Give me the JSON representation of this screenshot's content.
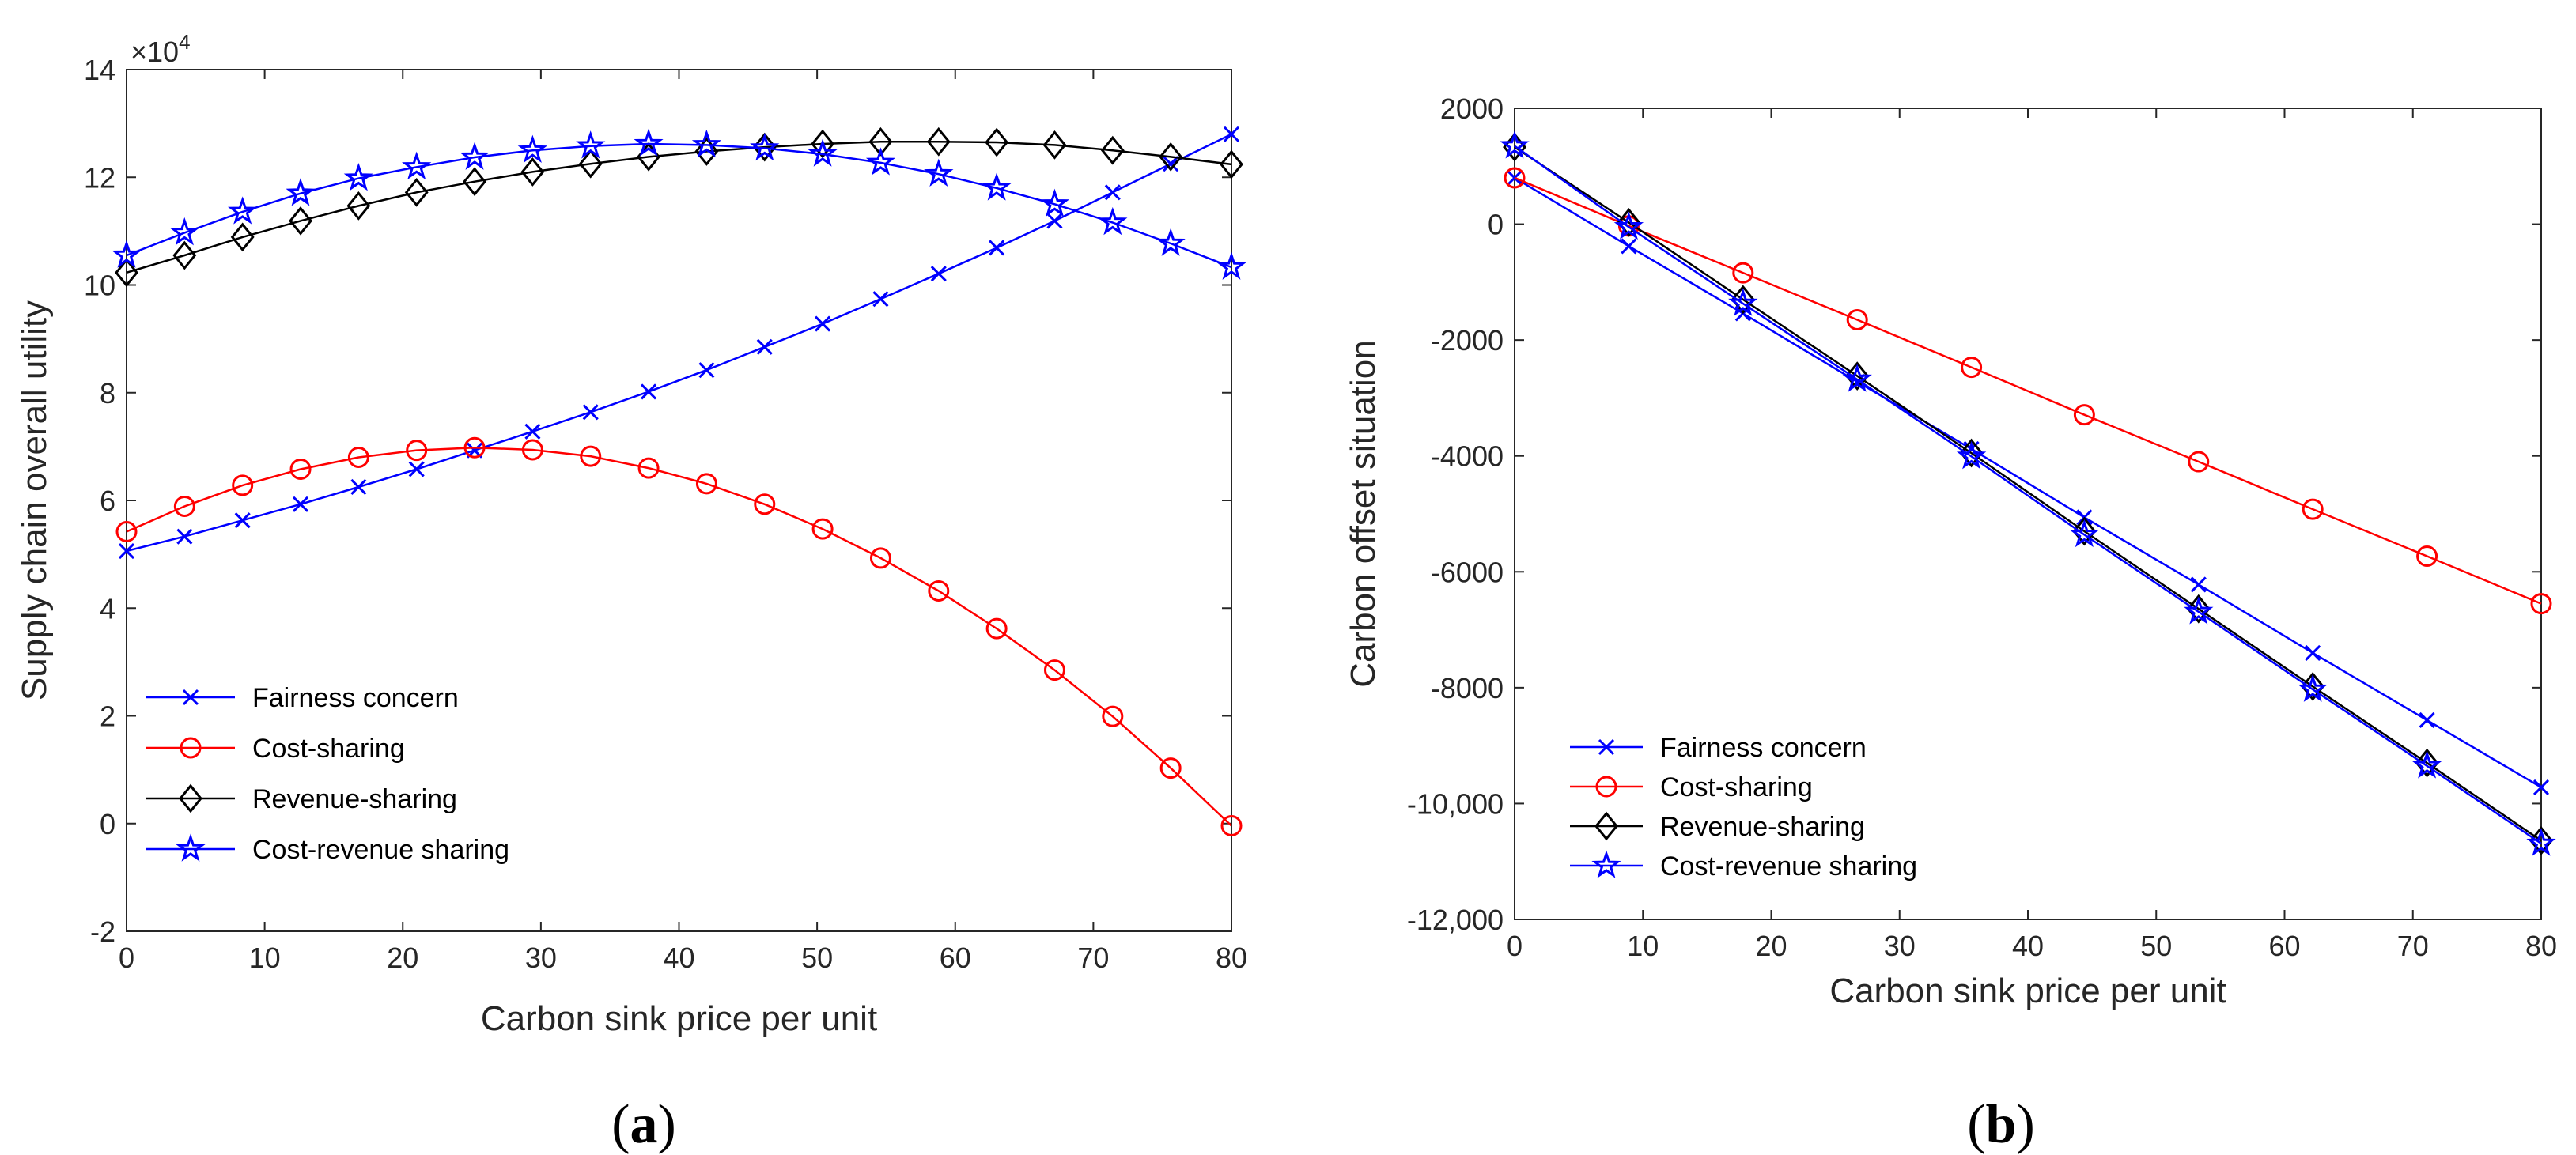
{
  "colors": {
    "fairness": "#0000ff",
    "cost": "#ff0000",
    "revenue": "#000000",
    "costrev": "#0000ff"
  },
  "chart_data": [
    {
      "type": "line",
      "panel": "(a)",
      "panel_open": "(",
      "panel_letter": "a",
      "panel_close": ")",
      "xlabel": "Carbon sink price per unit",
      "ylabel": "Supply chain overall utility",
      "exponent_base": "×10",
      "exponent_power": "4",
      "xlim": [
        0,
        80
      ],
      "ylim": [
        -2,
        14
      ],
      "xticks": [
        0,
        10,
        20,
        30,
        40,
        50,
        60,
        70,
        80
      ],
      "yticks": [
        -2,
        0,
        2,
        4,
        6,
        8,
        10,
        12,
        14
      ],
      "xtick_labels": [
        "0",
        "10",
        "20",
        "30",
        "40",
        "50",
        "60",
        "70",
        "80"
      ],
      "ytick_labels": [
        "-2",
        "0",
        "2",
        "4",
        "6",
        "8",
        "10",
        "12",
        "14"
      ],
      "legend_position": "bottom-left",
      "x": [
        0,
        4.2,
        8.4,
        12.6,
        16.8,
        21,
        25.2,
        29.4,
        33.6,
        37.8,
        42,
        46.2,
        50.4,
        54.6,
        58.8,
        63,
        67.2,
        71.4,
        75.6,
        80
      ],
      "series": [
        {
          "name": "Fairness concern",
          "marker": "x",
          "color_key": "fairness",
          "values": [
            5.06,
            5.33,
            5.63,
            5.93,
            6.25,
            6.58,
            6.93,
            7.28,
            7.64,
            8.02,
            8.42,
            8.85,
            9.28,
            9.74,
            10.21,
            10.69,
            11.19,
            11.72,
            12.25,
            12.8
          ]
        },
        {
          "name": "Cost-sharing",
          "marker": "o",
          "color_key": "cost",
          "values": [
            5.42,
            5.89,
            6.28,
            6.58,
            6.8,
            6.93,
            6.98,
            6.94,
            6.82,
            6.6,
            6.31,
            5.93,
            5.47,
            4.93,
            4.32,
            3.62,
            2.85,
            1.99,
            1.03,
            -0.04
          ]
        },
        {
          "name": "Revenue-sharing",
          "marker": "d",
          "color_key": "revenue",
          "values": [
            10.23,
            10.55,
            10.89,
            11.19,
            11.47,
            11.72,
            11.92,
            12.1,
            12.25,
            12.38,
            12.48,
            12.56,
            12.62,
            12.66,
            12.66,
            12.65,
            12.6,
            12.5,
            12.38,
            12.24
          ]
        },
        {
          "name": "Cost-revenue sharing",
          "marker": "star",
          "color_key": "costrev",
          "values": [
            10.55,
            10.97,
            11.36,
            11.7,
            11.98,
            12.19,
            12.37,
            12.5,
            12.58,
            12.62,
            12.6,
            12.54,
            12.43,
            12.27,
            12.06,
            11.8,
            11.5,
            11.16,
            10.77,
            10.33
          ]
        }
      ]
    },
    {
      "type": "line",
      "panel": "(b)",
      "panel_open": "(",
      "panel_letter": "b",
      "panel_close": ")",
      "xlabel": "Carbon sink price per unit",
      "ylabel": "Carbon offset situation",
      "xlim": [
        0,
        80
      ],
      "ylim": [
        -12000,
        2000
      ],
      "xticks": [
        0,
        10,
        20,
        30,
        40,
        50,
        60,
        70,
        80
      ],
      "yticks": [
        -12000,
        -10000,
        -8000,
        -6000,
        -4000,
        -2000,
        0,
        2000
      ],
      "xtick_labels": [
        "0",
        "10",
        "20",
        "30",
        "40",
        "50",
        "60",
        "70",
        "80"
      ],
      "ytick_labels": [
        "-12,000",
        "-10,000",
        "-8000",
        "-6000",
        "-4000",
        "-2000",
        "0",
        "2000"
      ],
      "legend_position": "bottom-left",
      "x": [
        0,
        8.9,
        17.8,
        26.7,
        35.6,
        44.4,
        53.3,
        62.2,
        71.1,
        80
      ],
      "series": [
        {
          "name": "Fairness concern",
          "marker": "x",
          "color_key": "fairness",
          "values": [
            800,
            -380,
            -1540,
            -2720,
            -3880,
            -5060,
            -6220,
            -7400,
            -8560,
            -9720
          ]
        },
        {
          "name": "Cost-sharing",
          "marker": "o",
          "color_key": "cost",
          "values": [
            800,
            -30,
            -840,
            -1650,
            -2470,
            -3290,
            -4100,
            -4920,
            -5730,
            -6550
          ]
        },
        {
          "name": "Revenue-sharing",
          "marker": "d",
          "color_key": "revenue",
          "values": [
            1330,
            30,
            -1300,
            -2620,
            -3950,
            -5300,
            -6640,
            -7980,
            -9300,
            -10640
          ]
        },
        {
          "name": "Cost-revenue sharing",
          "marker": "star",
          "color_key": "costrev",
          "values": [
            1350,
            -50,
            -1370,
            -2680,
            -4010,
            -5360,
            -6690,
            -8030,
            -9350,
            -10690
          ]
        }
      ]
    }
  ]
}
